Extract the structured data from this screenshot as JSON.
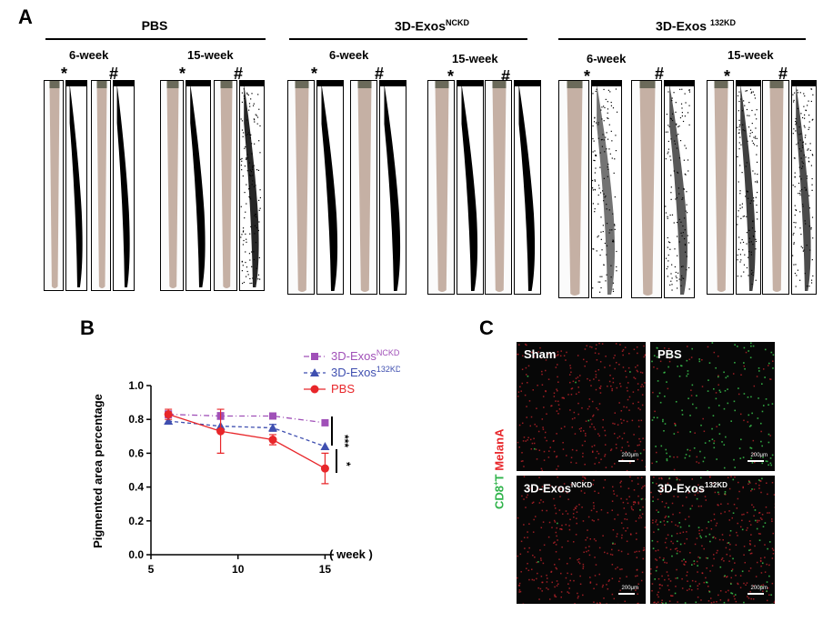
{
  "panels": {
    "a": "A",
    "b": "B",
    "c": "C"
  },
  "panel_a": {
    "groups": [
      {
        "title": "PBS",
        "weeks": [
          "6-week",
          "15-week"
        ]
      },
      {
        "title": "3D-Exos",
        "title_sup": "NCKD",
        "weeks": [
          "6-week",
          "15-week"
        ]
      },
      {
        "title": "3D-Exos ",
        "title_sup": "132KD",
        "weeks": [
          "6-week",
          "15-week"
        ]
      }
    ],
    "marks": [
      "*",
      "#"
    ]
  },
  "chart_data": {
    "type": "line",
    "ylabel": "Pigmented area percentage",
    "xlabel": "( week )",
    "x_ticks": [
      5,
      10,
      15
    ],
    "y_ticks": [
      "0.0",
      "0.2",
      "0.4",
      "0.6",
      "0.8",
      "1.0"
    ],
    "xlim": [
      5,
      15.5
    ],
    "ylim": [
      0,
      1.0
    ],
    "series": [
      {
        "name": "3D-Exos",
        "name_sup": "NCKD",
        "color": "#a050b8",
        "marker": "square",
        "line": "dash-dot",
        "x": [
          6,
          9,
          12,
          15
        ],
        "y": [
          0.83,
          0.82,
          0.82,
          0.78
        ],
        "err": [
          0.02,
          0.02,
          0.01,
          0.01
        ]
      },
      {
        "name": "3D-Exos",
        "name_sup": "132KD",
        "color": "#3f4fb0",
        "marker": "triangle",
        "line": "dashed",
        "x": [
          6,
          9,
          12,
          15
        ],
        "y": [
          0.79,
          0.76,
          0.75,
          0.64
        ],
        "err": [
          0.01,
          0.01,
          0.02,
          0.01
        ]
      },
      {
        "name": "PBS",
        "name_sup": "",
        "color": "#e8262a",
        "marker": "circle",
        "line": "solid",
        "x": [
          6,
          9,
          12,
          15
        ],
        "y": [
          0.83,
          0.73,
          0.68,
          0.51
        ],
        "err": [
          0.03,
          0.13,
          0.03,
          0.09
        ]
      }
    ],
    "significance": [
      "***",
      "*"
    ]
  },
  "panel_c": {
    "side_label_a": "CD8",
    "side_label_sup": "+",
    "side_label_b": "T ",
    "side_label_c": "MelanA",
    "tiles": [
      {
        "label": "Sham",
        "sup": "",
        "scale": "200μm",
        "style": "red"
      },
      {
        "label": "PBS",
        "sup": "",
        "scale": "200μm",
        "style": "green"
      },
      {
        "label": "3D-Exos",
        "sup": "NCKD",
        "scale": "200μm",
        "style": "red"
      },
      {
        "label": "3D-Exos",
        "sup": "132KD",
        "scale": "200μm",
        "style": "mixed"
      }
    ]
  }
}
